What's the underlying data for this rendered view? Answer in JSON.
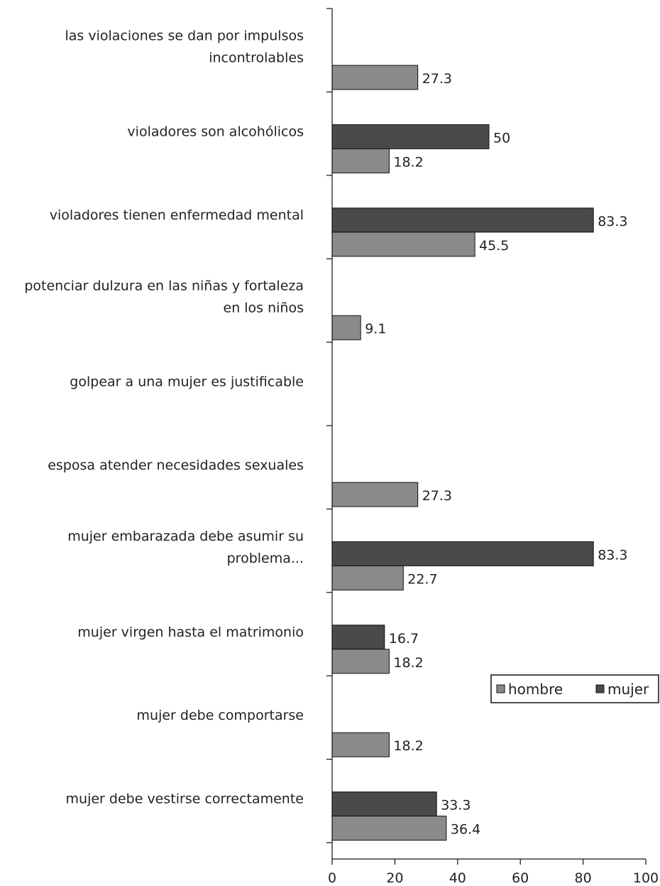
{
  "chart_data": {
    "type": "bar",
    "orientation": "horizontal",
    "title": "",
    "xlabel": "",
    "ylabel": "",
    "xlim": [
      0,
      100
    ],
    "ticks": [
      0,
      20,
      40,
      60,
      80,
      100
    ],
    "grid": false,
    "legend_position": "right",
    "categories": [
      {
        "lines": [
          "las violaciones se dan por impulsos",
          "incontrolables"
        ]
      },
      {
        "lines": [
          "violadores son alcohólicos"
        ]
      },
      {
        "lines": [
          "violadores tienen enfermedad mental"
        ]
      },
      {
        "lines": [
          "potenciar dulzura en las niñas y fortaleza",
          "en los niños"
        ]
      },
      {
        "lines": [
          "golpear a una mujer es justificable"
        ]
      },
      {
        "lines": [
          "esposa atender necesidades sexuales"
        ]
      },
      {
        "lines": [
          "mujer embarazada debe asumir su",
          "problema..."
        ]
      },
      {
        "lines": [
          "mujer virgen hasta el matrimonio"
        ]
      },
      {
        "lines": [
          "mujer debe comportarse"
        ]
      },
      {
        "lines": [
          "mujer debe vestirse correctamente"
        ]
      }
    ],
    "series": [
      {
        "name": "hombre",
        "color": "#8a8a8a",
        "values": [
          27.3,
          18.2,
          45.5,
          9.1,
          null,
          27.3,
          22.7,
          18.2,
          18.2,
          36.4
        ]
      },
      {
        "name": "mujer",
        "color": "#4a4a4a",
        "values": [
          null,
          50,
          83.3,
          null,
          null,
          null,
          83.3,
          16.7,
          null,
          33.3
        ]
      }
    ]
  }
}
